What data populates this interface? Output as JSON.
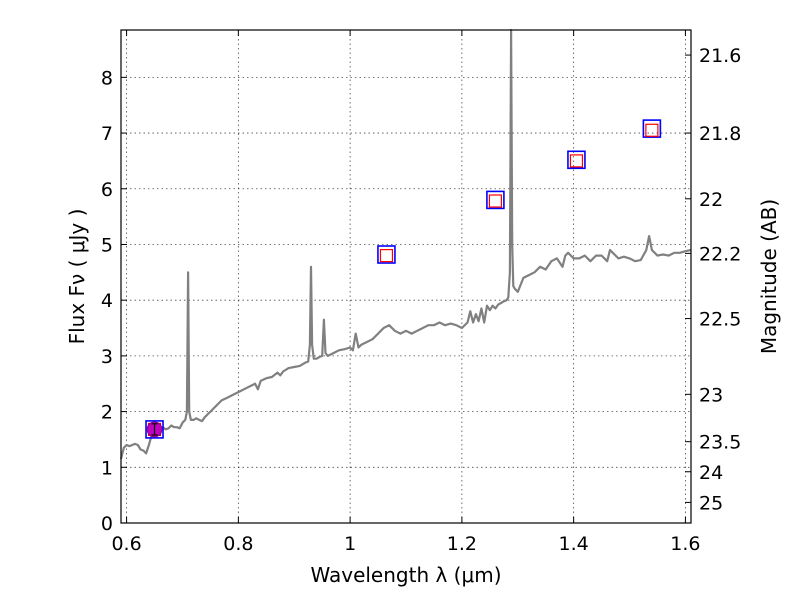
{
  "chart_data": {
    "type": "line",
    "xlabel": "Wavelength  λ (μm)",
    "ylabel": "Flux  Fν  ( μJy )",
    "y2label": "Magnitude (AB)",
    "xlim": [
      0.59,
      1.61
    ],
    "ylim": [
      0,
      8.85
    ],
    "grid": true,
    "xticks": [
      0.6,
      0.8,
      1.0,
      1.2,
      1.4,
      1.6
    ],
    "xtick_labels": [
      "0.6",
      "0.8",
      "1",
      "1.2",
      "1.4",
      "1.6"
    ],
    "yticks": [
      0,
      1,
      2,
      3,
      4,
      5,
      6,
      7,
      8
    ],
    "ytick_labels": [
      "0",
      "1",
      "2",
      "3",
      "4",
      "5",
      "6",
      "7",
      "8"
    ],
    "y2ticks": [
      {
        "label": "21.6",
        "flux": 8.4
      },
      {
        "label": "21.8",
        "flux": 7.0
      },
      {
        "label": "22",
        "flux": 5.82
      },
      {
        "label": "22.2",
        "flux": 4.84
      },
      {
        "label": "22.5",
        "flux": 3.67
      },
      {
        "label": "23",
        "flux": 2.31
      },
      {
        "label": "23.5",
        "flux": 1.46
      },
      {
        "label": "24",
        "flux": 0.92
      },
      {
        "label": "25",
        "flux": 0.37
      }
    ],
    "colors": {
      "spectrum": "#808080",
      "blue_square": "#0000ff",
      "red_square": "#ff0000",
      "magenta_point": "#bf00bf"
    },
    "series": [
      {
        "kind": "spectrum",
        "x": [
          0.59,
          0.595,
          0.6,
          0.605,
          0.61,
          0.615,
          0.62,
          0.625,
          0.63,
          0.635,
          0.64,
          0.645,
          0.65,
          0.655,
          0.66,
          0.665,
          0.67,
          0.675,
          0.68,
          0.685,
          0.69,
          0.695,
          0.7,
          0.705,
          0.708,
          0.71,
          0.712,
          0.715,
          0.72,
          0.725,
          0.73,
          0.735,
          0.74,
          0.745,
          0.75,
          0.76,
          0.77,
          0.78,
          0.79,
          0.8,
          0.81,
          0.82,
          0.83,
          0.835,
          0.84,
          0.85,
          0.86,
          0.87,
          0.875,
          0.88,
          0.89,
          0.9,
          0.91,
          0.92,
          0.925,
          0.928,
          0.93,
          0.932,
          0.935,
          0.94,
          0.945,
          0.95,
          0.953,
          0.956,
          0.96,
          0.97,
          0.98,
          0.99,
          1.0,
          1.005,
          1.01,
          1.015,
          1.02,
          1.03,
          1.04,
          1.05,
          1.06,
          1.07,
          1.08,
          1.09,
          1.1,
          1.11,
          1.12,
          1.13,
          1.14,
          1.15,
          1.16,
          1.17,
          1.18,
          1.19,
          1.2,
          1.21,
          1.215,
          1.22,
          1.225,
          1.23,
          1.235,
          1.24,
          1.245,
          1.25,
          1.255,
          1.26,
          1.265,
          1.27,
          1.275,
          1.28,
          1.283,
          1.286,
          1.288,
          1.29,
          1.292,
          1.295,
          1.3,
          1.31,
          1.32,
          1.33,
          1.34,
          1.35,
          1.36,
          1.37,
          1.38,
          1.385,
          1.39,
          1.4,
          1.41,
          1.42,
          1.43,
          1.44,
          1.45,
          1.46,
          1.465,
          1.47,
          1.48,
          1.49,
          1.5,
          1.51,
          1.52,
          1.53,
          1.535,
          1.54,
          1.545,
          1.55,
          1.56,
          1.57,
          1.58,
          1.59,
          1.6,
          1.61
        ],
        "y": [
          1.15,
          1.35,
          1.4,
          1.38,
          1.4,
          1.42,
          1.4,
          1.32,
          1.3,
          1.25,
          1.4,
          1.58,
          1.62,
          1.65,
          1.7,
          1.72,
          1.68,
          1.7,
          1.75,
          1.72,
          1.72,
          1.7,
          1.8,
          1.85,
          2.0,
          4.5,
          2.0,
          1.85,
          1.85,
          1.88,
          1.85,
          1.83,
          1.9,
          1.95,
          2.0,
          2.1,
          2.2,
          2.25,
          2.3,
          2.35,
          2.4,
          2.45,
          2.5,
          2.4,
          2.55,
          2.6,
          2.62,
          2.7,
          2.65,
          2.72,
          2.78,
          2.8,
          2.82,
          2.88,
          2.9,
          3.2,
          4.6,
          3.2,
          2.95,
          2.95,
          2.98,
          3.0,
          3.65,
          3.05,
          3.0,
          3.05,
          3.1,
          3.12,
          3.15,
          3.1,
          3.4,
          3.15,
          3.2,
          3.25,
          3.3,
          3.4,
          3.5,
          3.55,
          3.45,
          3.4,
          3.45,
          3.4,
          3.45,
          3.5,
          3.55,
          3.55,
          3.6,
          3.55,
          3.58,
          3.55,
          3.5,
          3.6,
          3.8,
          3.6,
          3.75,
          3.62,
          3.85,
          3.6,
          3.9,
          3.82,
          3.9,
          3.85,
          3.92,
          3.95,
          3.98,
          4.0,
          4.05,
          4.5,
          8.85,
          5.0,
          4.25,
          4.2,
          4.15,
          4.4,
          4.45,
          4.5,
          4.6,
          4.55,
          4.7,
          4.75,
          4.6,
          4.8,
          4.85,
          4.75,
          4.75,
          4.8,
          4.7,
          4.8,
          4.8,
          4.7,
          4.9,
          4.85,
          4.75,
          4.78,
          4.75,
          4.7,
          4.72,
          4.9,
          5.15,
          4.9,
          4.85,
          4.8,
          4.82,
          4.8,
          4.85,
          4.85,
          4.88,
          4.9
        ]
      },
      {
        "kind": "photometry-blue-squares",
        "x": [
          0.65,
          1.065,
          1.26,
          1.405,
          1.54
        ],
        "y": [
          1.68,
          4.82,
          5.8,
          6.52,
          7.08
        ]
      },
      {
        "kind": "model-red-squares",
        "x": [
          0.65,
          1.065,
          1.26,
          1.405,
          1.54
        ],
        "y": [
          1.68,
          4.8,
          5.78,
          6.5,
          7.05
        ]
      },
      {
        "kind": "measured-point-magenta",
        "x": [
          0.65
        ],
        "y": [
          1.68
        ],
        "yerr": [
          0.1
        ]
      }
    ]
  }
}
